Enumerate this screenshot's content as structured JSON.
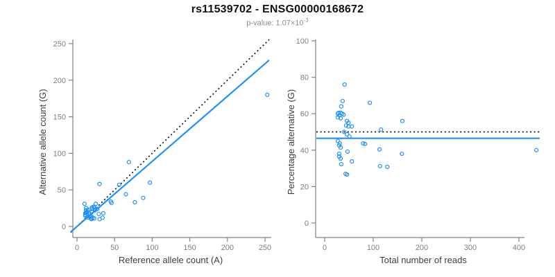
{
  "header": {
    "title": "rs11539702 - ENSG00000168672",
    "pvalue_prefix": "p-value: 1.07×10",
    "pvalue_exponent": "-3"
  },
  "colors": {
    "accent_blue": "#1E90FF",
    "dotted_black": "#111111",
    "axis_gray": "#808080",
    "tick_label_gray": "#7f7f7f",
    "axis_title_gray": "#3d3d3d",
    "subtitle_gray": "#8a8a8a",
    "title_black": "#111111"
  },
  "chart_data": [
    {
      "type": "scatter",
      "name": "allele-count-scatter",
      "xlabel": "Reference allele count (A)",
      "ylabel": "Alternative allele count (G)",
      "xlim": [
        0,
        253
      ],
      "ylim": [
        0,
        255
      ],
      "xticks": [
        0,
        50,
        100,
        150,
        200,
        250
      ],
      "yticks": [
        0,
        50,
        100,
        150,
        200,
        250
      ],
      "grid": false,
      "legend": "none",
      "points": [
        [
          10,
          31
        ],
        [
          12,
          25
        ],
        [
          12,
          22
        ],
        [
          30,
          58
        ],
        [
          11,
          18
        ],
        [
          11,
          16
        ],
        [
          13,
          20
        ],
        [
          14,
          22
        ],
        [
          12,
          18
        ],
        [
          16,
          23
        ],
        [
          11,
          15
        ],
        [
          14,
          19
        ],
        [
          20,
          26
        ],
        [
          22,
          27
        ],
        [
          69,
          88
        ],
        [
          20,
          24
        ],
        [
          23,
          26
        ],
        [
          25,
          31
        ],
        [
          56,
          57
        ],
        [
          20,
          20
        ],
        [
          24,
          22
        ],
        [
          27,
          24
        ],
        [
          15,
          12
        ],
        [
          17,
          14
        ],
        [
          17,
          13
        ],
        [
          19,
          14
        ],
        [
          45,
          34
        ],
        [
          46,
          32
        ],
        [
          65,
          44
        ],
        [
          29,
          17
        ],
        [
          19,
          11
        ],
        [
          97,
          60
        ],
        [
          19,
          10
        ],
        [
          21,
          12
        ],
        [
          23,
          11
        ],
        [
          35,
          18
        ],
        [
          77,
          33
        ],
        [
          88,
          39
        ],
        [
          30,
          10
        ],
        [
          34,
          12
        ],
        [
          253,
          180
        ]
      ],
      "lines": [
        {
          "name": "identity-line",
          "style": "dotted",
          "color": "#111111",
          "slope": 1,
          "intercept": 0
        },
        {
          "name": "regression-line",
          "style": "solid",
          "color": "#1E90FF",
          "slope": 0.89,
          "intercept": 0
        }
      ]
    },
    {
      "type": "scatter",
      "name": "percentage-alternative-scatter",
      "xlabel": "Total number of reads",
      "ylabel": "Percentage alternative (G)",
      "xlim": [
        0,
        436
      ],
      "ylim": [
        0,
        100
      ],
      "xticks": [
        0,
        100,
        200,
        300,
        400
      ],
      "yticks": [
        0,
        20,
        40,
        60,
        80,
        100
      ],
      "grid": false,
      "legend": "none",
      "points": [
        [
          41,
          76
        ],
        [
          37,
          67
        ],
        [
          34,
          64
        ],
        [
          93,
          66
        ],
        [
          29,
          60.5
        ],
        [
          27,
          60
        ],
        [
          33,
          60.5
        ],
        [
          36,
          60
        ],
        [
          30,
          59
        ],
        [
          39,
          59.5
        ],
        [
          27,
          58
        ],
        [
          33,
          57.5
        ],
        [
          46,
          56
        ],
        [
          49,
          55
        ],
        [
          160,
          56
        ],
        [
          44,
          53.5
        ],
        [
          49,
          53
        ],
        [
          56,
          53
        ],
        [
          116,
          51.3
        ],
        [
          40,
          50
        ],
        [
          46,
          48.7
        ],
        [
          51,
          47.5
        ],
        [
          27,
          45
        ],
        [
          31,
          43.7
        ],
        [
          30,
          42.6
        ],
        [
          33,
          41.4
        ],
        [
          79,
          43.7
        ],
        [
          83,
          43.4
        ],
        [
          113,
          40.4
        ],
        [
          47,
          39.2
        ],
        [
          30,
          38
        ],
        [
          159,
          38
        ],
        [
          30,
          36.5
        ],
        [
          33,
          35.4
        ],
        [
          34,
          32.3
        ],
        [
          56,
          33.8
        ],
        [
          114,
          31.2
        ],
        [
          129,
          30.8
        ],
        [
          43,
          27
        ],
        [
          46,
          26.6
        ],
        [
          436,
          40
        ]
      ],
      "lines": [
        {
          "name": "expected-50pct-line",
          "style": "dotted",
          "color": "#111111",
          "slope": 0,
          "intercept": 50
        },
        {
          "name": "mean-percentage-line",
          "style": "solid",
          "color": "#1E90FF",
          "slope": 0,
          "intercept": 46.5
        }
      ]
    }
  ]
}
